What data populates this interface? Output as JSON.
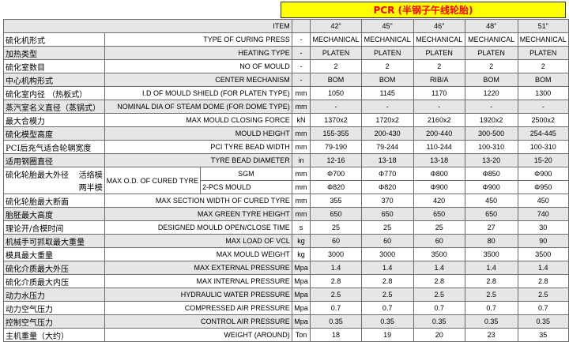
{
  "banner": "PCR (半钢子午线轮胎)",
  "header": {
    "label": "ITEM",
    "sizes": [
      "42\"",
      "45\"",
      "46\"",
      "48\"",
      "51\""
    ]
  },
  "rows": [
    {
      "zh": "硫化机形式",
      "en": "TYPE OF CURING PRESS",
      "unit": "-",
      "values": [
        "MECHANICAL",
        "MECHANICAL",
        "MECHANICAL",
        "MECHANICAL",
        "MECHANICAL"
      ]
    },
    {
      "zh": "加热类型",
      "en": "HEATING TYPE",
      "unit": "-",
      "values": [
        "PLATEN",
        "PLATEN",
        "PLATEN",
        "PLATEN",
        "PLATEN"
      ]
    },
    {
      "zh": "硫化室数目",
      "en": "NO OF MOULD",
      "unit": "-",
      "values": [
        "2",
        "2",
        "2",
        "2",
        "2"
      ]
    },
    {
      "zh": "中心机构形式",
      "en": "CENTER MECHANISM",
      "unit": "-",
      "values": [
        "BOM",
        "BOM",
        "RIB/A",
        "BOM",
        "BOM"
      ]
    },
    {
      "zh": "硫化室内径 （热板式）",
      "en": "I.D OF MOULD SHIELD (FOR PLATEN TYPE)",
      "unit": "mm",
      "values": [
        "1050",
        "1145",
        "1170",
        "1220",
        "1300"
      ]
    },
    {
      "zh": "蒸汽室名义直径（蒸锅式）",
      "en": "NOMINAL DIA OF STEAM DOME (FOR DOME TYPE)",
      "unit": "mm",
      "values": [
        "-",
        "-",
        "-",
        "-",
        "-"
      ]
    },
    {
      "zh": "最大合模力",
      "en": "MAX MOULD CLOSING FORCE",
      "unit": "kN",
      "values": [
        "1370x2",
        "1720x2",
        "2160x2",
        "1920x2",
        "2500x2"
      ]
    },
    {
      "zh": "硫化模型高度",
      "en": "MOULD HEIGHT",
      "unit": "mm",
      "values": [
        "155-355",
        "200-430",
        "200-440",
        "300-500",
        "254-445"
      ]
    },
    {
      "zh": "PCI后充气适合轮辋宽度",
      "en": "PCI TYRE BEAD WIDTH",
      "unit": "mm",
      "values": [
        "79-190",
        "79-244",
        "110-244",
        "100-310",
        "100-310"
      ]
    },
    {
      "zh": "适用钢圈直径",
      "en": "TYRE BEAD DIAMETER",
      "unit": "in",
      "values": [
        "12-16",
        "13-18",
        "13-18",
        "13-20",
        "15-20"
      ]
    }
  ],
  "od": {
    "zh": "硫化轮胎最大外径",
    "zh_sgm": "活络模",
    "zh_2pcs": "两半模",
    "en": "MAX O.D. OF CURED TYRE",
    "sgm": {
      "label": "SGM",
      "unit": "mm",
      "values": [
        "Φ700",
        "Φ770",
        "Φ800",
        "Φ850",
        "Φ900"
      ]
    },
    "twopcs": {
      "label": "2-PCS MOULD",
      "unit": "mm",
      "values": [
        "Φ820",
        "Φ820",
        "Φ900",
        "Φ900",
        "Φ950"
      ]
    }
  },
  "rows2": [
    {
      "zh": "硫化轮胎最大断面",
      "en": "MAX SECTION WIDTH OF CURED TYRE",
      "unit": "mm",
      "values": [
        "355",
        "370",
        "420",
        "450",
        "450"
      ]
    },
    {
      "zh": "胎胚最大高度",
      "en": "MAX GREEN TYRE HEIGHT",
      "unit": "mm",
      "values": [
        "650",
        "650",
        "650",
        "650",
        "740"
      ]
    },
    {
      "zh": "理论开/合模时间",
      "en": "DESIGNED MOULD OPEN/CLOSE TIME",
      "unit": "s",
      "values": [
        "25",
        "25",
        "25",
        "27",
        "30"
      ]
    },
    {
      "zh": "机械手可抓取最大重量",
      "en": "MAX LOAD OF VCL",
      "unit": "kg",
      "values": [
        "60",
        "60",
        "60",
        "80",
        "90"
      ]
    },
    {
      "zh": "模具最大重量",
      "en": "MAX MOULD WEIGHT",
      "unit": "kg",
      "values": [
        "3000",
        "3000",
        "3500",
        "3500",
        "3500"
      ]
    },
    {
      "zh": "硫化介质最大外压",
      "en": "MAX EXTERNAL PRESSURE",
      "unit": "Mpa",
      "values": [
        "1.4",
        "1.4",
        "1.4",
        "1.4",
        "1.4"
      ]
    },
    {
      "zh": "硫化介质最大内压",
      "en": "MAX INTERNAL PRESSURE",
      "unit": "Mpa",
      "values": [
        "2.8",
        "2.8",
        "2.8",
        "2.8",
        "2.8"
      ]
    },
    {
      "zh": "动力水压力",
      "en": "HYDRAULIC WATER PRESSURE",
      "unit": "Mpa",
      "values": [
        "2.5",
        "2.5",
        "2.5",
        "2.5",
        "2.5"
      ]
    },
    {
      "zh": "动力空气压力",
      "en": "COMPRESSED AIR PRESSURE",
      "unit": "Mpa",
      "values": [
        "0.7",
        "0.7",
        "0.7",
        "0.7",
        "0.7"
      ]
    },
    {
      "zh": "控制空气压力",
      "en": "CONTROL AIR PRESSURE",
      "unit": "Mpa",
      "values": [
        "0.35",
        "0.35",
        "0.35",
        "0.35",
        "0.35"
      ]
    },
    {
      "zh": "主机重量（大约）",
      "en": "WEIGHT (AROUND)",
      "unit": "Ton",
      "values": [
        "18",
        "19",
        "20",
        "23",
        "35"
      ]
    }
  ]
}
